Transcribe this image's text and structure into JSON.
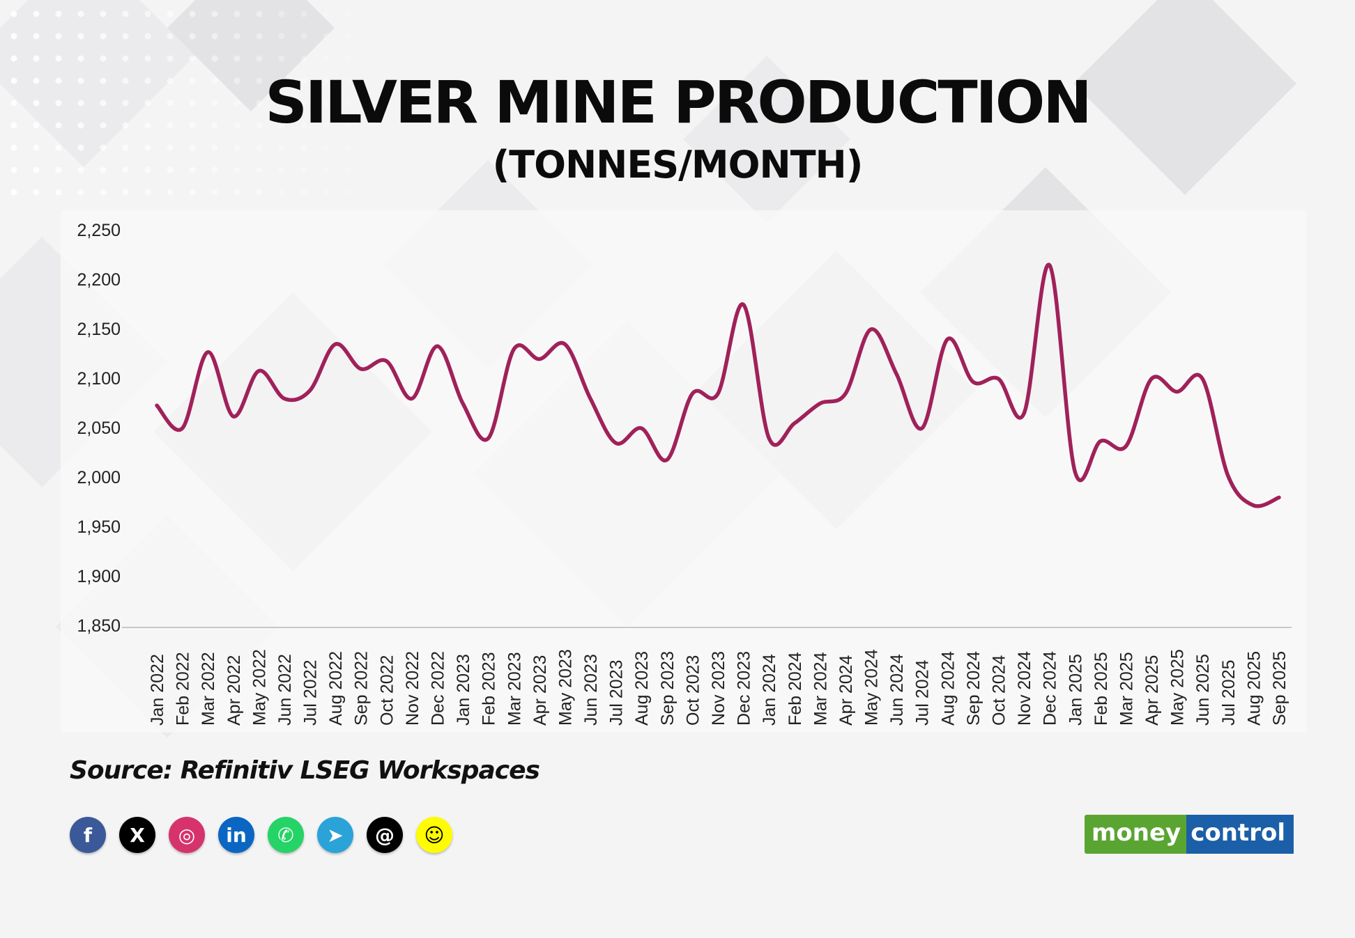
{
  "title": "SILVER MINE PRODUCTION",
  "subtitle": "(TONNES/MONTH)",
  "source": "Source: Refinitiv LSEG Workspaces",
  "social_icons": [
    {
      "name": "facebook-icon",
      "glyph": "f",
      "color": "#3b5998"
    },
    {
      "name": "x-icon",
      "glyph": "X",
      "color": "#000000"
    },
    {
      "name": "instagram-icon",
      "glyph": "◎",
      "color": "#d6336c"
    },
    {
      "name": "linkedin-icon",
      "glyph": "in",
      "color": "#0a66c2"
    },
    {
      "name": "whatsapp-icon",
      "glyph": "✆",
      "color": "#25d366"
    },
    {
      "name": "telegram-icon",
      "glyph": "➤",
      "color": "#2aa3d9"
    },
    {
      "name": "threads-icon",
      "glyph": "@",
      "color": "#000000"
    },
    {
      "name": "snapchat-icon",
      "glyph": "☺",
      "color": "#fffc00"
    }
  ],
  "logo": {
    "money": "money",
    "control": "control"
  },
  "colors": {
    "line": "#a0215a",
    "axis": "#c8c8c8",
    "text": "#222222"
  },
  "chart_data": {
    "type": "line",
    "title": "SILVER MINE PRODUCTION",
    "subtitle": "(TONNES/MONTH)",
    "xlabel": "",
    "ylabel": "",
    "ylim": [
      1850,
      2250
    ],
    "yticks": [
      1850,
      1900,
      1950,
      2000,
      2050,
      2100,
      2150,
      2200,
      2250
    ],
    "ytick_labels": [
      "1,850",
      "1,900",
      "1,950",
      "2,000",
      "2,050",
      "2,100",
      "2,150",
      "2,200",
      "2,250"
    ],
    "grid": false,
    "categories": [
      "Jan 2022",
      "Feb 2022",
      "Mar 2022",
      "Apr 2022",
      "May 2022",
      "Jun 2022",
      "Jul 2022",
      "Aug 2022",
      "Sep 2022",
      "Oct 2022",
      "Nov 2022",
      "Dec 2022",
      "Jan 2023",
      "Feb 2023",
      "Mar 2023",
      "Apr 2023",
      "May 2023",
      "Jun 2023",
      "Jul 2023",
      "Aug 2023",
      "Sep 2023",
      "Oct 2023",
      "Nov 2023",
      "Dec 2023",
      "Jan 2024",
      "Feb 2024",
      "Mar 2024",
      "Apr 2024",
      "May 2024",
      "Jun 2024",
      "Jul 2024",
      "Aug 2024",
      "Sep 2024",
      "Oct 2024",
      "Nov 2024",
      "Dec 2024",
      "Jan 2025",
      "Feb 2025",
      "Mar 2025",
      "Apr 2025",
      "May 2025",
      "Jun 2025",
      "Jul 2025",
      "Aug 2025",
      "Sep 2025"
    ],
    "series": [
      {
        "values": [
          2073,
          2050,
          2127,
          2062,
          2108,
          2080,
          2088,
          2135,
          2110,
          2118,
          2080,
          2133,
          2075,
          2040,
          2130,
          2120,
          2135,
          2080,
          2035,
          2050,
          2018,
          2085,
          2085,
          2175,
          2040,
          2055,
          2075,
          2085,
          2150,
          2105,
          2050,
          2140,
          2097,
          2100,
          2065,
          2215,
          2006,
          2037,
          2032,
          2100,
          2087,
          2100,
          2002,
          1972,
          1980
        ]
      }
    ]
  }
}
